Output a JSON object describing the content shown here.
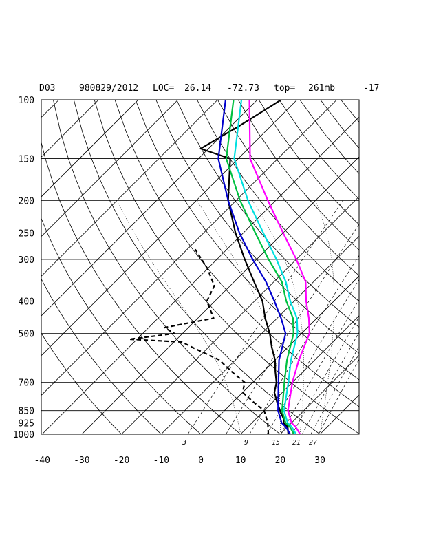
{
  "header": {
    "station": "D03",
    "datetime": "980829/2012",
    "loc_label": "LOC=",
    "lat": "26.14",
    "lon": "-72.73",
    "top_label": "top=",
    "top_value": "261mb",
    "extra": "-17"
  },
  "chart_data": {
    "type": "line",
    "subtype": "skew-T log-p sounding",
    "pressure_ticks": [
      1000,
      925,
      850,
      700,
      500,
      400,
      300,
      250,
      200,
      150,
      100
    ],
    "temperature_ticks": [
      -40,
      -30,
      -20,
      -10,
      0,
      10,
      20,
      30
    ],
    "mixing_ratio_labels": [
      "3",
      "9",
      "15",
      "21",
      "27"
    ],
    "ylim": [
      1000,
      100
    ],
    "xlim": [
      -40,
      40
    ],
    "series": [
      {
        "style": "black solid",
        "color": "#000000",
        "points": [
          [
            1000,
            22
          ],
          [
            950,
            20
          ],
          [
            925,
            18
          ],
          [
            900,
            17
          ],
          [
            850,
            14
          ],
          [
            800,
            11
          ],
          [
            750,
            8
          ],
          [
            700,
            6
          ],
          [
            650,
            3
          ],
          [
            600,
            0
          ],
          [
            550,
            -4
          ],
          [
            500,
            -8
          ],
          [
            450,
            -13
          ],
          [
            400,
            -18
          ],
          [
            350,
            -25
          ],
          [
            300,
            -33
          ],
          [
            250,
            -42
          ],
          [
            200,
            -52
          ],
          [
            150,
            -62
          ],
          [
            140,
            -72
          ],
          [
            120,
            -68
          ],
          [
            100,
            -64
          ]
        ]
      },
      {
        "style": "black dashed",
        "color": "#000000",
        "points": [
          [
            1000,
            17
          ],
          [
            925,
            14
          ],
          [
            850,
            10
          ],
          [
            800,
            5
          ],
          [
            750,
            0
          ],
          [
            700,
            -2
          ],
          [
            650,
            -8
          ],
          [
            600,
            -14
          ],
          [
            550,
            -24
          ],
          [
            530,
            -28
          ],
          [
            520,
            -42
          ],
          [
            500,
            -32
          ],
          [
            480,
            -36
          ],
          [
            450,
            -26
          ],
          [
            400,
            -32
          ],
          [
            360,
            -34
          ],
          [
            320,
            -40
          ],
          [
            280,
            -48
          ]
        ]
      },
      {
        "style": "magenta solid",
        "color": "#ff00ff",
        "points": [
          [
            1000,
            25
          ],
          [
            950,
            22
          ],
          [
            925,
            20
          ],
          [
            850,
            16
          ],
          [
            700,
            10
          ],
          [
            600,
            6
          ],
          [
            500,
            2
          ],
          [
            450,
            -2
          ],
          [
            400,
            -7
          ],
          [
            350,
            -12
          ],
          [
            300,
            -20
          ],
          [
            250,
            -30
          ],
          [
            200,
            -42
          ],
          [
            150,
            -57
          ],
          [
            100,
            -72
          ]
        ]
      },
      {
        "style": "cyan solid",
        "color": "#00e0e0",
        "points": [
          [
            1000,
            24
          ],
          [
            950,
            21
          ],
          [
            925,
            19
          ],
          [
            850,
            15
          ],
          [
            700,
            9
          ],
          [
            600,
            4
          ],
          [
            500,
            -1
          ],
          [
            450,
            -5
          ],
          [
            400,
            -11
          ],
          [
            350,
            -17
          ],
          [
            300,
            -25
          ],
          [
            250,
            -35
          ],
          [
            200,
            -47
          ],
          [
            150,
            -61
          ],
          [
            100,
            -74
          ]
        ]
      },
      {
        "style": "green solid",
        "color": "#00c040",
        "points": [
          [
            1000,
            23.5
          ],
          [
            950,
            20.5
          ],
          [
            925,
            18.5
          ],
          [
            850,
            14.5
          ],
          [
            700,
            8
          ],
          [
            600,
            3
          ],
          [
            500,
            -2
          ],
          [
            450,
            -6
          ],
          [
            400,
            -12
          ],
          [
            350,
            -18
          ],
          [
            300,
            -27
          ],
          [
            250,
            -37
          ],
          [
            200,
            -49
          ],
          [
            150,
            -63
          ],
          [
            100,
            -76
          ]
        ]
      },
      {
        "style": "blue solid",
        "color": "#0000cc",
        "points": [
          [
            1000,
            22.5
          ],
          [
            950,
            19.5
          ],
          [
            925,
            17.5
          ],
          [
            850,
            13.5
          ],
          [
            700,
            6.5
          ],
          [
            600,
            1
          ],
          [
            500,
            -4
          ],
          [
            450,
            -9
          ],
          [
            400,
            -15
          ],
          [
            350,
            -22
          ],
          [
            300,
            -31
          ],
          [
            250,
            -41
          ],
          [
            200,
            -52
          ],
          [
            150,
            -65
          ],
          [
            100,
            -78
          ]
        ]
      }
    ]
  }
}
